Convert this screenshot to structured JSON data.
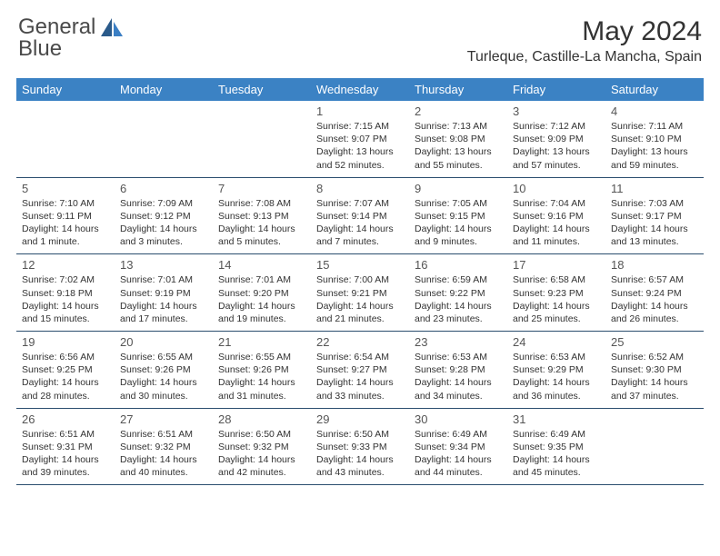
{
  "logo": {
    "text1": "General",
    "text2": "Blue"
  },
  "title": "May 2024",
  "location": "Turleque, Castille-La Mancha, Spain",
  "colors": {
    "header_bg": "#3b82c4",
    "header_text": "#ffffff",
    "week_border": "#2a4d6e",
    "daynum": "#555555",
    "info_text": "#333333",
    "logo_gray": "#4a4a4a",
    "logo_blue": "#3b7fc4"
  },
  "day_names": [
    "Sunday",
    "Monday",
    "Tuesday",
    "Wednesday",
    "Thursday",
    "Friday",
    "Saturday"
  ],
  "weeks": [
    [
      null,
      null,
      null,
      {
        "n": "1",
        "sr": "7:15 AM",
        "ss": "9:07 PM",
        "dl": "13 hours and 52 minutes."
      },
      {
        "n": "2",
        "sr": "7:13 AM",
        "ss": "9:08 PM",
        "dl": "13 hours and 55 minutes."
      },
      {
        "n": "3",
        "sr": "7:12 AM",
        "ss": "9:09 PM",
        "dl": "13 hours and 57 minutes."
      },
      {
        "n": "4",
        "sr": "7:11 AM",
        "ss": "9:10 PM",
        "dl": "13 hours and 59 minutes."
      }
    ],
    [
      {
        "n": "5",
        "sr": "7:10 AM",
        "ss": "9:11 PM",
        "dl": "14 hours and 1 minute."
      },
      {
        "n": "6",
        "sr": "7:09 AM",
        "ss": "9:12 PM",
        "dl": "14 hours and 3 minutes."
      },
      {
        "n": "7",
        "sr": "7:08 AM",
        "ss": "9:13 PM",
        "dl": "14 hours and 5 minutes."
      },
      {
        "n": "8",
        "sr": "7:07 AM",
        "ss": "9:14 PM",
        "dl": "14 hours and 7 minutes."
      },
      {
        "n": "9",
        "sr": "7:05 AM",
        "ss": "9:15 PM",
        "dl": "14 hours and 9 minutes."
      },
      {
        "n": "10",
        "sr": "7:04 AM",
        "ss": "9:16 PM",
        "dl": "14 hours and 11 minutes."
      },
      {
        "n": "11",
        "sr": "7:03 AM",
        "ss": "9:17 PM",
        "dl": "14 hours and 13 minutes."
      }
    ],
    [
      {
        "n": "12",
        "sr": "7:02 AM",
        "ss": "9:18 PM",
        "dl": "14 hours and 15 minutes."
      },
      {
        "n": "13",
        "sr": "7:01 AM",
        "ss": "9:19 PM",
        "dl": "14 hours and 17 minutes."
      },
      {
        "n": "14",
        "sr": "7:01 AM",
        "ss": "9:20 PM",
        "dl": "14 hours and 19 minutes."
      },
      {
        "n": "15",
        "sr": "7:00 AM",
        "ss": "9:21 PM",
        "dl": "14 hours and 21 minutes."
      },
      {
        "n": "16",
        "sr": "6:59 AM",
        "ss": "9:22 PM",
        "dl": "14 hours and 23 minutes."
      },
      {
        "n": "17",
        "sr": "6:58 AM",
        "ss": "9:23 PM",
        "dl": "14 hours and 25 minutes."
      },
      {
        "n": "18",
        "sr": "6:57 AM",
        "ss": "9:24 PM",
        "dl": "14 hours and 26 minutes."
      }
    ],
    [
      {
        "n": "19",
        "sr": "6:56 AM",
        "ss": "9:25 PM",
        "dl": "14 hours and 28 minutes."
      },
      {
        "n": "20",
        "sr": "6:55 AM",
        "ss": "9:26 PM",
        "dl": "14 hours and 30 minutes."
      },
      {
        "n": "21",
        "sr": "6:55 AM",
        "ss": "9:26 PM",
        "dl": "14 hours and 31 minutes."
      },
      {
        "n": "22",
        "sr": "6:54 AM",
        "ss": "9:27 PM",
        "dl": "14 hours and 33 minutes."
      },
      {
        "n": "23",
        "sr": "6:53 AM",
        "ss": "9:28 PM",
        "dl": "14 hours and 34 minutes."
      },
      {
        "n": "24",
        "sr": "6:53 AM",
        "ss": "9:29 PM",
        "dl": "14 hours and 36 minutes."
      },
      {
        "n": "25",
        "sr": "6:52 AM",
        "ss": "9:30 PM",
        "dl": "14 hours and 37 minutes."
      }
    ],
    [
      {
        "n": "26",
        "sr": "6:51 AM",
        "ss": "9:31 PM",
        "dl": "14 hours and 39 minutes."
      },
      {
        "n": "27",
        "sr": "6:51 AM",
        "ss": "9:32 PM",
        "dl": "14 hours and 40 minutes."
      },
      {
        "n": "28",
        "sr": "6:50 AM",
        "ss": "9:32 PM",
        "dl": "14 hours and 42 minutes."
      },
      {
        "n": "29",
        "sr": "6:50 AM",
        "ss": "9:33 PM",
        "dl": "14 hours and 43 minutes."
      },
      {
        "n": "30",
        "sr": "6:49 AM",
        "ss": "9:34 PM",
        "dl": "14 hours and 44 minutes."
      },
      {
        "n": "31",
        "sr": "6:49 AM",
        "ss": "9:35 PM",
        "dl": "14 hours and 45 minutes."
      },
      null
    ]
  ],
  "labels": {
    "sunrise": "Sunrise:",
    "sunset": "Sunset:",
    "daylight": "Daylight:"
  }
}
